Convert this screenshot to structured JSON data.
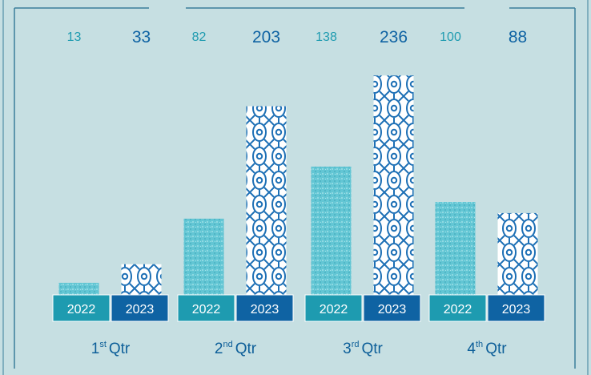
{
  "colors": {
    "background": "#c6dfe2",
    "frame": "#3a7f9a",
    "series_2022": "#1e9bb0",
    "series_2023": "#0f63a3",
    "bar_2022_fill": "#63c6d4",
    "bar_2023_fill": "#ffffff",
    "bar_2023_pattern": "#1c6fb5",
    "quarter_label": "#0d5f99"
  },
  "chart_data": {
    "type": "bar",
    "title": "",
    "xlabel": "",
    "ylabel": "",
    "categories": [
      {
        "ordinal": "1",
        "suffix": "st",
        "word": "Qtr"
      },
      {
        "ordinal": "2",
        "suffix": "nd",
        "word": "Qtr"
      },
      {
        "ordinal": "3",
        "suffix": "rd",
        "word": "Qtr"
      },
      {
        "ordinal": "4",
        "suffix": "th",
        "word": "Qtr"
      }
    ],
    "series": [
      {
        "name": "2022",
        "values": [
          13,
          82,
          138,
          100
        ]
      },
      {
        "name": "2023",
        "values": [
          33,
          203,
          236,
          88
        ]
      }
    ],
    "ylim": [
      0,
      250
    ],
    "grid": false,
    "legend": "none"
  }
}
